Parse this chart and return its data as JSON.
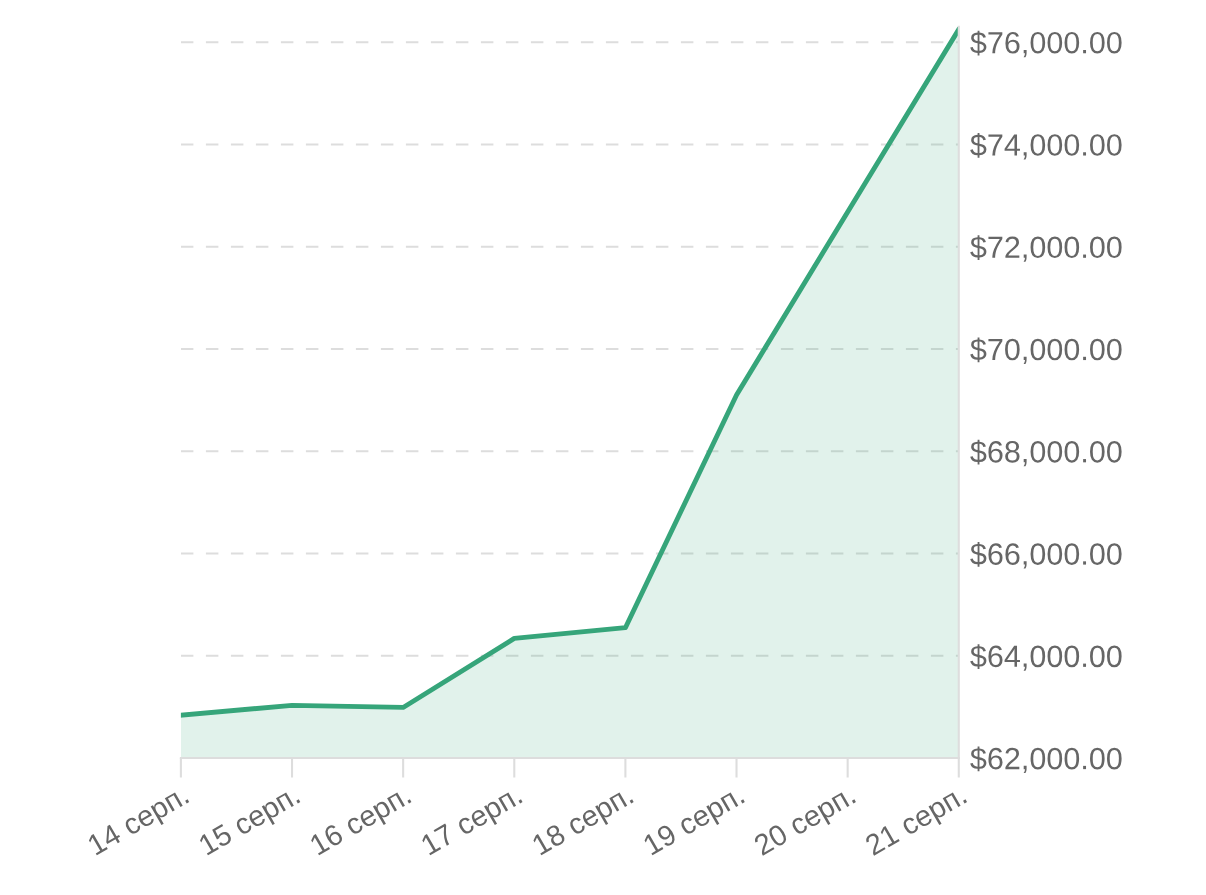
{
  "chart_data": {
    "type": "area",
    "categories": [
      "14 серп.",
      "15 серп.",
      "16 серп.",
      "17 серп.",
      "18 серп.",
      "19 серп.",
      "20 серп.",
      "21 серп."
    ],
    "series": [
      {
        "color": "#36a57a",
        "values": [
          62840,
          63030,
          62990,
          64340,
          64550,
          69100,
          72680,
          76250
        ]
      }
    ],
    "ylim": [
      62000,
      76300
    ],
    "yticks": [
      {
        "value": 62000,
        "label": "$62,000.00"
      },
      {
        "value": 64000,
        "label": "$64,000.00"
      },
      {
        "value": 66000,
        "label": "$66,000.00"
      },
      {
        "value": 68000,
        "label": "$68,000.00"
      },
      {
        "value": 70000,
        "label": "$70,000.00"
      },
      {
        "value": 72000,
        "label": "$72,000.00"
      },
      {
        "value": 74000,
        "label": "$74,000.00"
      },
      {
        "value": 76000,
        "label": "$76,000.00"
      }
    ],
    "grid": "y",
    "line_style": "solid",
    "marker": "none",
    "legend": false
  }
}
